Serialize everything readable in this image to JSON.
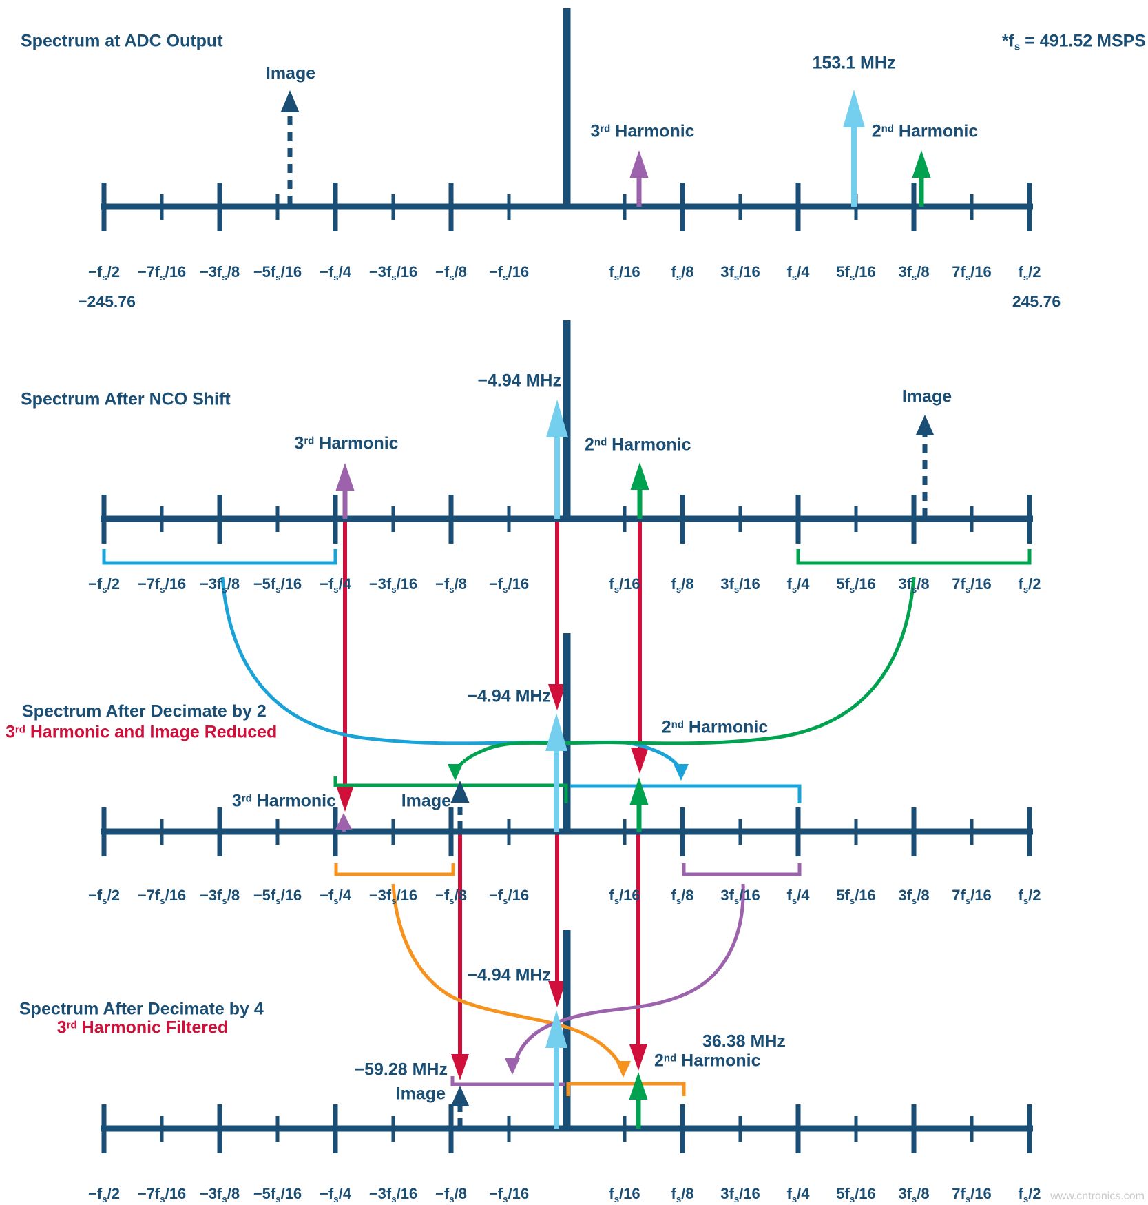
{
  "colors": {
    "navy": "#1a4e74",
    "red": "#d0103a",
    "lightcyan": "#74cfee",
    "cyan": "#1ba3d8",
    "green": "#00a24f",
    "purple": "#9c62ab",
    "orange": "#f6921e"
  },
  "sample_rate_note": "*fs = 491.52 MSPS",
  "axis": {
    "tick_labels": [
      "−fs/2",
      "−7fs/16",
      "−3fs/8",
      "−5fs/16",
      "−fs/4",
      "−3fs/16",
      "−fs/8",
      "−fs/16",
      "fs/16",
      "fs/8",
      "3fs/16",
      "fs/4",
      "5fs/16",
      "3fs/8",
      "7fs/16",
      "fs/2"
    ],
    "left_value": "−245.76",
    "right_value": "245.76"
  },
  "panels": [
    {
      "title": "Spectrum at ADC Output",
      "signals": {
        "image": "Image",
        "third_harmonic": "3rd Harmonic",
        "fundamental": "153.1 MHz",
        "second_harmonic": "2nd Harmonic"
      }
    },
    {
      "title": "Spectrum After NCO Shift",
      "signals": {
        "third_harmonic": "3rd Harmonic",
        "fundamental": "−4.94 MHz",
        "second_harmonic": "2nd Harmonic",
        "image": "Image"
      }
    },
    {
      "title": "Spectrum After Decimate by 2",
      "subtitle": "3rd Harmonic and Image Reduced",
      "signals": {
        "fundamental": "−4.94 MHz",
        "second_harmonic": "2nd Harmonic",
        "third_harmonic": "3rd Harmonic",
        "image": "Image"
      }
    },
    {
      "title": "Spectrum After Decimate by 4",
      "subtitle": "3rd Harmonic Filtered",
      "signals": {
        "fundamental": "−4.94 MHz",
        "image_frequency": "−59.28 MHz",
        "image": "Image",
        "second_harmonic_frequency": "36.38 MHz",
        "second_harmonic": "2nd Harmonic"
      }
    }
  ],
  "watermark": "www.cntronics.com"
}
